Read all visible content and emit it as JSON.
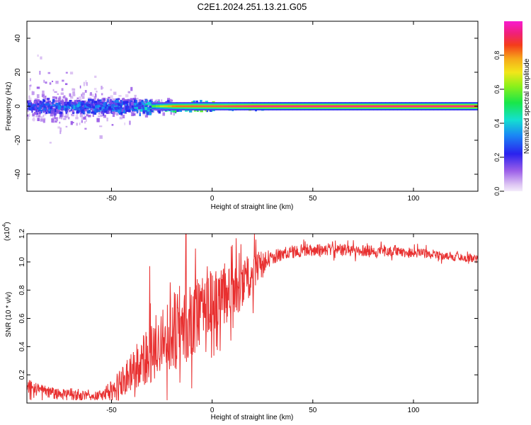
{
  "figure": {
    "title": "C2E1.2024.251.13.21.G05"
  },
  "chart_data": [
    {
      "type": "heatmap",
      "name": "spectrogram",
      "xlabel": "Height of straight line (km)",
      "ylabel": "Frequency (Hz)",
      "xlim": [
        -92,
        132
      ],
      "ylim": [
        -50,
        50
      ],
      "xticks": [
        -50,
        0,
        50,
        100
      ],
      "yticks": [
        -40,
        -20,
        0,
        20,
        40
      ],
      "colorbar": {
        "label": "Normalized spectral amplitude",
        "range": [
          0,
          1
        ],
        "ticks": [
          0.0,
          0.2,
          0.4,
          0.6,
          0.8
        ],
        "tick_labels": [
          "0.0",
          "0.2",
          "0.4",
          "0.6",
          "0.8"
        ]
      },
      "features": {
        "noisy_region_km": [
          -92,
          -30
        ],
        "noise_spread_hz": 50,
        "dominant_line_hz": 0,
        "dominant_line_amplitude_by_height": [
          {
            "x": -90,
            "amp": 0.35
          },
          {
            "x": -60,
            "amp": 0.4
          },
          {
            "x": -40,
            "amp": 0.45
          },
          {
            "x": -30,
            "amp": 0.6
          },
          {
            "x": -20,
            "amp": 0.85
          },
          {
            "x": -10,
            "amp": 0.9
          },
          {
            "x": 0,
            "amp": 0.9
          },
          {
            "x": 10,
            "amp": 0.95
          },
          {
            "x": 20,
            "amp": 1.0
          },
          {
            "x": 132,
            "amp": 1.0
          }
        ]
      }
    },
    {
      "type": "line",
      "name": "snr",
      "xlabel": "Height of straight line (km)",
      "ylabel": "SNR (10 * v/v)",
      "yscale_label": "(x10",
      "yscale_exponent": "4",
      "xlim": [
        -92,
        132
      ],
      "ylim": [
        0,
        1.2
      ],
      "xticks": [
        -50,
        0,
        50,
        100
      ],
      "yticks": [
        0.2,
        0.4,
        0.6,
        0.8,
        1.0,
        1.2
      ],
      "ytick_labels": [
        "0.2",
        "0.4",
        "0.6",
        "0.8",
        "1.0",
        "1.2"
      ],
      "color": "#e83030",
      "series": [
        {
          "name": "SNR",
          "trend": [
            {
              "x": -92,
              "y": 0.12
            },
            {
              "x": -85,
              "y": 0.09
            },
            {
              "x": -75,
              "y": 0.06
            },
            {
              "x": -65,
              "y": 0.05
            },
            {
              "x": -55,
              "y": 0.06
            },
            {
              "x": -48,
              "y": 0.1
            },
            {
              "x": -42,
              "y": 0.2
            },
            {
              "x": -35,
              "y": 0.3
            },
            {
              "x": -28,
              "y": 0.4
            },
            {
              "x": -20,
              "y": 0.5
            },
            {
              "x": -15,
              "y": 0.55
            },
            {
              "x": -8,
              "y": 0.62
            },
            {
              "x": 0,
              "y": 0.7
            },
            {
              "x": 8,
              "y": 0.78
            },
            {
              "x": 15,
              "y": 0.85
            },
            {
              "x": 22,
              "y": 0.95
            },
            {
              "x": 28,
              "y": 1.02
            },
            {
              "x": 35,
              "y": 1.06
            },
            {
              "x": 45,
              "y": 1.08
            },
            {
              "x": 60,
              "y": 1.09
            },
            {
              "x": 75,
              "y": 1.08
            },
            {
              "x": 90,
              "y": 1.07
            },
            {
              "x": 105,
              "y": 1.06
            },
            {
              "x": 120,
              "y": 1.04
            },
            {
              "x": 132,
              "y": 1.02
            }
          ],
          "noise": [
            {
              "x": -92,
              "amp": 0.05
            },
            {
              "x": -55,
              "amp": 0.03
            },
            {
              "x": -45,
              "amp": 0.12
            },
            {
              "x": -30,
              "amp": 0.22
            },
            {
              "x": -15,
              "amp": 0.3
            },
            {
              "x": 0,
              "amp": 0.24
            },
            {
              "x": 20,
              "amp": 0.16
            },
            {
              "x": 30,
              "amp": 0.05
            },
            {
              "x": 132,
              "amp": 0.03
            }
          ],
          "peaks": [
            {
              "x": -13,
              "y": 1.2
            },
            {
              "x": 10,
              "y": 1.12
            },
            {
              "x": -31,
              "y": 0.97
            },
            {
              "x": 91,
              "y": 1.12
            }
          ]
        }
      ]
    }
  ]
}
